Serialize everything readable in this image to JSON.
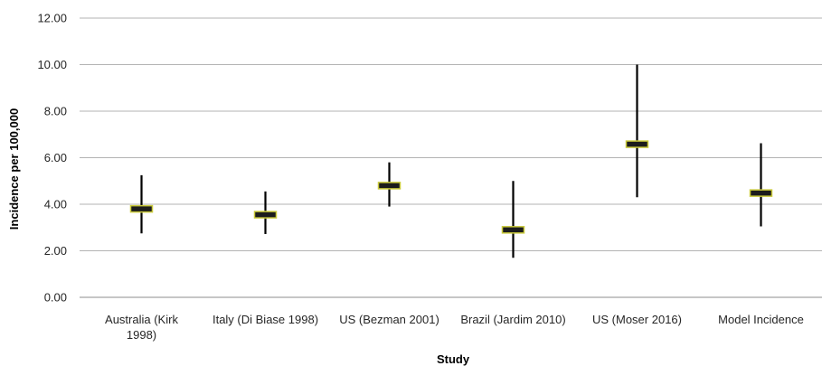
{
  "chart_data": {
    "type": "scatter",
    "title": "",
    "xlabel": "Study",
    "ylabel": "Incidence per 100,000",
    "ylim": [
      0,
      12
    ],
    "y_ticks": [
      "0.00",
      "2.00",
      "4.00",
      "6.00",
      "8.00",
      "10.00",
      "12.00"
    ],
    "grid": "horizontal",
    "categories": [
      [
        "Australia (Kirk",
        "1998)"
      ],
      [
        "Italy (Di Biase 1998)"
      ],
      [
        "US (Bezman 2001)"
      ],
      [
        "Brazil (Jardim 2010)"
      ],
      [
        "US (Moser 2016)"
      ],
      [
        "Model Incidence"
      ]
    ],
    "series": [
      {
        "values": [
          3.8,
          3.55,
          4.8,
          2.9,
          6.58,
          4.48
        ],
        "lower": [
          2.75,
          2.72,
          3.9,
          1.7,
          4.3,
          3.05
        ],
        "upper": [
          5.25,
          4.55,
          5.8,
          5.0,
          10.0,
          6.62
        ]
      }
    ],
    "colors": {
      "marker_fill": "#1c1c1c",
      "marker_edge": "#c9c93a",
      "whisker": "#000000",
      "grid": "#b3b3b3",
      "axis": "#8c8c8c"
    }
  }
}
